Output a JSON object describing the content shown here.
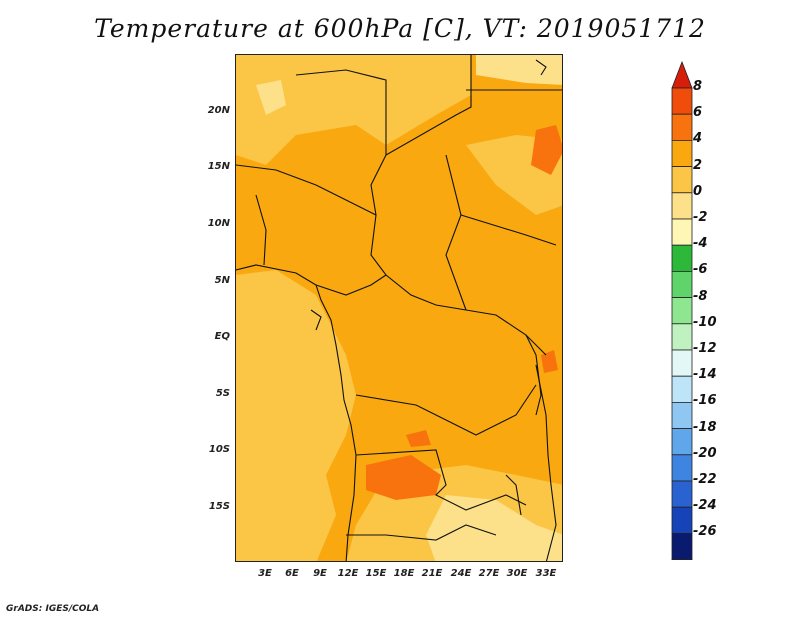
{
  "title": "Temperature at 600hPa [C], VT: 2019051712",
  "credit": "GrADS: IGES/COLA",
  "map": {
    "lat_labels": [
      "20N",
      "15N",
      "10N",
      "5N",
      "EQ",
      "5S",
      "10S",
      "15S"
    ],
    "lon_labels": [
      "3E",
      "6E",
      "9E",
      "12E",
      "15E",
      "18E",
      "21E",
      "24E",
      "27E",
      "30E",
      "33E"
    ]
  },
  "colorbar": {
    "labels": [
      "8",
      "6",
      "4",
      "2",
      "0",
      "-2",
      "-4",
      "-6",
      "-8",
      "-10",
      "-12",
      "-14",
      "-16",
      "-18",
      "-20",
      "-22",
      "-24",
      "-26"
    ],
    "colors": [
      "#d61e0a",
      "#f04c0c",
      "#f8720e",
      "#f9a90f",
      "#fbc546",
      "#fde08a",
      "#fdf6b4",
      "#2db83a",
      "#5ed46a",
      "#8ee691",
      "#bff2c0",
      "#e4f7f7",
      "#bde4f7",
      "#8fc7f2",
      "#5fa6eb",
      "#3d85e0",
      "#2863d1",
      "#1643b8",
      "#0a2896",
      "#061670"
    ],
    "top_cap_color": "#d61e0a",
    "bottom_cap_color": "#ddddf5"
  }
}
